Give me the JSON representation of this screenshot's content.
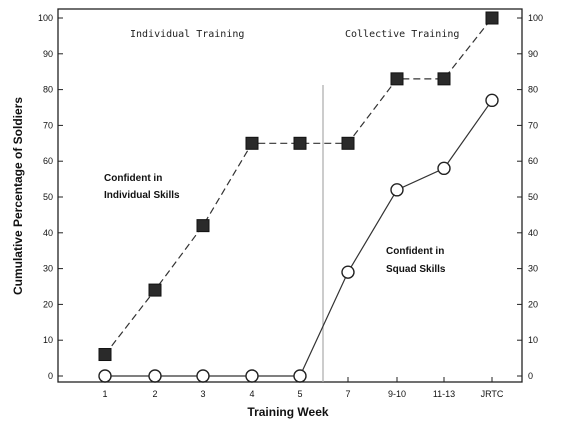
{
  "chart_data": {
    "type": "line",
    "xlabel": "Training Week",
    "ylabel": "Cumulative Percentage of Soldiers",
    "categories": [
      "1",
      "2",
      "3",
      "4",
      "5",
      "7",
      "9-10",
      "11-13",
      "JRTC"
    ],
    "ylim": [
      0,
      100
    ],
    "yticks": [
      0,
      10,
      20,
      30,
      40,
      50,
      60,
      70,
      80,
      90,
      100
    ],
    "grid": false,
    "series": [
      {
        "values": [
          6,
          24,
          42,
          65,
          65,
          65,
          83,
          83,
          100
        ],
        "marker": "filled-square",
        "line": "dashed",
        "color": "#333333"
      },
      {
        "values": [
          0,
          0,
          0,
          0,
          0,
          29,
          52,
          58,
          77
        ],
        "marker": "open-circle",
        "line": "solid",
        "color": "#333333"
      }
    ],
    "annotations": {
      "phase_left": "Individual Training",
      "phase_right": "Collective Training",
      "individual_line1": "Confident in",
      "individual_line2": "Individual Skills",
      "squad_line1": "Confident in",
      "squad_line2": "Squad Skills"
    }
  }
}
